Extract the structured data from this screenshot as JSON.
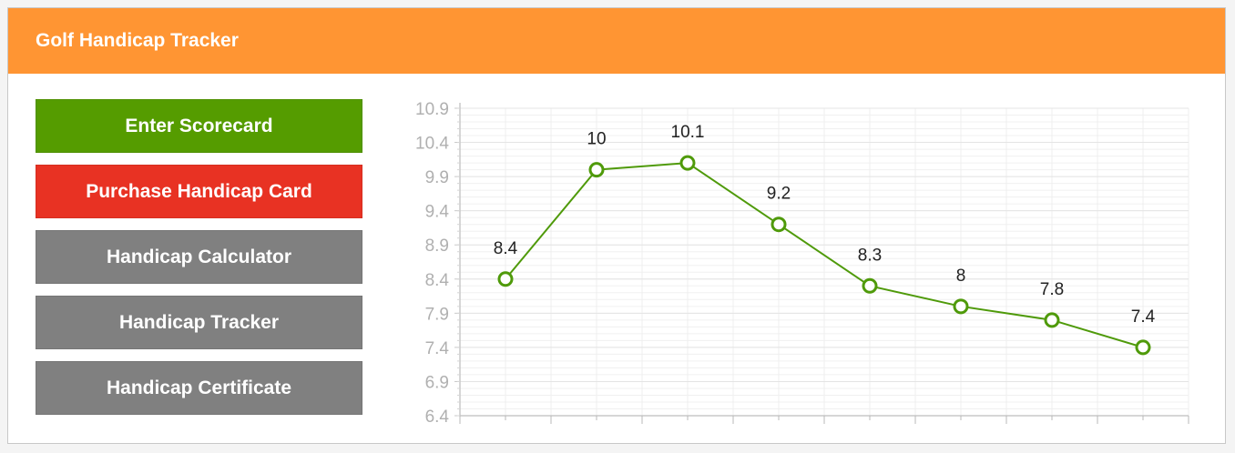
{
  "header": {
    "title": "Golf Handicap Tracker"
  },
  "nav": {
    "items": [
      {
        "label": "Enter Scorecard",
        "variant": "green"
      },
      {
        "label": "Purchase Handicap Card",
        "variant": "red"
      },
      {
        "label": "Handicap Calculator",
        "variant": "gray"
      },
      {
        "label": "Handicap Tracker",
        "variant": "gray"
      },
      {
        "label": "Handicap Certificate",
        "variant": "gray"
      }
    ]
  },
  "colors": {
    "header": "#ff9533",
    "green": "#559c00",
    "red": "#e83223",
    "gray": "#808080",
    "series": "#4f9a0a"
  },
  "chart_data": {
    "type": "line",
    "y_ticks": [
      "6.4",
      "6.9",
      "7.4",
      "7.9",
      "8.4",
      "8.9",
      "9.4",
      "9.9",
      "10.4",
      "10.9"
    ],
    "ylim": [
      6.4,
      10.9
    ],
    "x_count": 8,
    "values": [
      8.4,
      10,
      10.1,
      9.2,
      8.3,
      8,
      7.8,
      7.4
    ],
    "data_labels": [
      "8.4",
      "10",
      "10.1",
      "9.2",
      "8.3",
      "8",
      "7.8",
      "7.4"
    ],
    "grid": true
  }
}
